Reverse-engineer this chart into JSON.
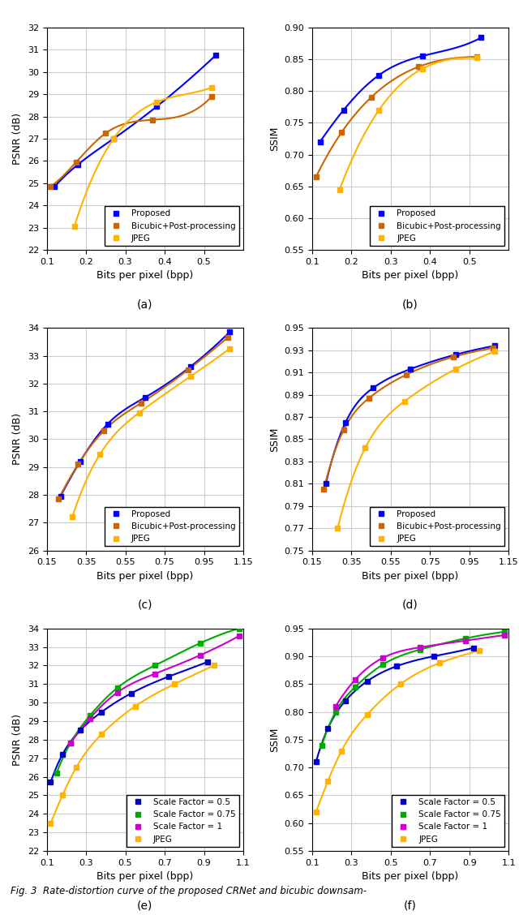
{
  "subplots": [
    {
      "label": "(a)",
      "xlabel": "Bits per pixel (bpp)",
      "ylabel": "PSNR (dB)",
      "xlim": [
        0.1,
        0.6
      ],
      "ylim": [
        22,
        32
      ],
      "xticks": [
        0.1,
        0.2,
        0.3,
        0.4,
        0.5
      ],
      "yticks": [
        22,
        23,
        24,
        25,
        26,
        27,
        28,
        29,
        30,
        31,
        32
      ],
      "series": [
        {
          "name": "Proposed",
          "color": "#0000FF",
          "marker": "s",
          "x": [
            0.12,
            0.18,
            0.27,
            0.38,
            0.53
          ],
          "y": [
            24.85,
            25.85,
            27.0,
            28.45,
            30.75
          ]
        },
        {
          "name": "Bicubic+Post-processing",
          "color": "#CC6600",
          "marker": "s",
          "x": [
            0.11,
            0.175,
            0.25,
            0.37,
            0.52
          ],
          "y": [
            24.85,
            25.95,
            27.25,
            27.85,
            28.9
          ]
        },
        {
          "name": "JPEG",
          "color": "#FFB300",
          "marker": "s",
          "x": [
            0.17,
            0.27,
            0.38,
            0.52
          ],
          "y": [
            23.05,
            27.0,
            28.65,
            29.3
          ]
        }
      ],
      "legend_loc": "lower right"
    },
    {
      "label": "(b)",
      "xlabel": "Bits per pixel (bpp)",
      "ylabel": "SSIM",
      "xlim": [
        0.1,
        0.6
      ],
      "ylim": [
        0.55,
        0.9
      ],
      "xticks": [
        0.1,
        0.2,
        0.3,
        0.4,
        0.5
      ],
      "yticks": [
        0.55,
        0.6,
        0.65,
        0.7,
        0.75,
        0.8,
        0.85,
        0.9
      ],
      "series": [
        {
          "name": "Proposed",
          "color": "#0000FF",
          "marker": "s",
          "x": [
            0.12,
            0.18,
            0.27,
            0.38,
            0.53
          ],
          "y": [
            0.72,
            0.77,
            0.825,
            0.855,
            0.884
          ]
        },
        {
          "name": "Bicubic+Post-processing",
          "color": "#CC6600",
          "marker": "s",
          "x": [
            0.11,
            0.175,
            0.25,
            0.37,
            0.52
          ],
          "y": [
            0.665,
            0.735,
            0.79,
            0.838,
            0.854
          ]
        },
        {
          "name": "JPEG",
          "color": "#FFB300",
          "marker": "s",
          "x": [
            0.17,
            0.27,
            0.38,
            0.52
          ],
          "y": [
            0.645,
            0.77,
            0.835,
            0.852
          ]
        }
      ],
      "legend_loc": "lower right"
    },
    {
      "label": "(c)",
      "xlabel": "Bits per pixel (bpp)",
      "ylabel": "PSNR (dB)",
      "xlim": [
        0.15,
        1.15
      ],
      "ylim": [
        26,
        34
      ],
      "xticks": [
        0.15,
        0.35,
        0.55,
        0.75,
        0.95,
        1.15
      ],
      "yticks": [
        26,
        27,
        28,
        29,
        30,
        31,
        32,
        33,
        34
      ],
      "series": [
        {
          "name": "Proposed",
          "color": "#0000FF",
          "marker": "s",
          "x": [
            0.22,
            0.32,
            0.46,
            0.65,
            0.88,
            1.08
          ],
          "y": [
            27.95,
            29.2,
            30.55,
            31.5,
            32.6,
            33.85
          ]
        },
        {
          "name": "Bicubic+Post-processing",
          "color": "#CC6600",
          "marker": "s",
          "x": [
            0.21,
            0.31,
            0.44,
            0.63,
            0.87,
            1.07
          ],
          "y": [
            27.85,
            29.1,
            30.3,
            31.3,
            32.5,
            33.65
          ]
        },
        {
          "name": "JPEG",
          "color": "#FFB300",
          "marker": "s",
          "x": [
            0.28,
            0.42,
            0.62,
            0.88,
            1.08
          ],
          "y": [
            27.2,
            29.45,
            30.95,
            32.25,
            33.25
          ]
        }
      ],
      "legend_loc": "lower right"
    },
    {
      "label": "(d)",
      "xlabel": "Bits per pixel (bpp)",
      "ylabel": "SSIM",
      "xlim": [
        0.15,
        1.15
      ],
      "ylim": [
        0.75,
        0.95
      ],
      "xticks": [
        0.15,
        0.35,
        0.55,
        0.75,
        0.95,
        1.15
      ],
      "yticks": [
        0.75,
        0.77,
        0.79,
        0.81,
        0.83,
        0.85,
        0.87,
        0.89,
        0.91,
        0.93,
        0.95
      ],
      "series": [
        {
          "name": "Proposed",
          "color": "#0000FF",
          "marker": "s",
          "x": [
            0.22,
            0.32,
            0.46,
            0.65,
            0.88,
            1.08
          ],
          "y": [
            0.81,
            0.865,
            0.896,
            0.913,
            0.926,
            0.934
          ]
        },
        {
          "name": "Bicubic+Post-processing",
          "color": "#CC6600",
          "marker": "s",
          "x": [
            0.21,
            0.31,
            0.44,
            0.63,
            0.87,
            1.07
          ],
          "y": [
            0.805,
            0.858,
            0.887,
            0.908,
            0.924,
            0.932
          ]
        },
        {
          "name": "JPEG",
          "color": "#FFB300",
          "marker": "s",
          "x": [
            0.28,
            0.42,
            0.62,
            0.88,
            1.08
          ],
          "y": [
            0.77,
            0.842,
            0.884,
            0.913,
            0.929
          ]
        }
      ],
      "legend_loc": "lower right"
    },
    {
      "label": "(e)",
      "xlabel": "Bits per pixel (bpp)",
      "ylabel": "PSNR (dB)",
      "xlim": [
        0.1,
        1.1
      ],
      "ylim": [
        22,
        34
      ],
      "xticks": [
        0.1,
        0.3,
        0.5,
        0.7,
        0.9,
        1.1
      ],
      "yticks": [
        22,
        23,
        24,
        25,
        26,
        27,
        28,
        29,
        30,
        31,
        32,
        33,
        34
      ],
      "series": [
        {
          "name": "Scale Factor = 0.5",
          "color": "#0000CC",
          "marker": "s",
          "x": [
            0.12,
            0.18,
            0.27,
            0.38,
            0.53,
            0.72,
            0.92
          ],
          "y": [
            25.7,
            27.2,
            28.5,
            29.5,
            30.5,
            31.4,
            32.2
          ]
        },
        {
          "name": "Scale Factor = 0.75",
          "color": "#00AA00",
          "marker": "s",
          "x": [
            0.15,
            0.22,
            0.32,
            0.46,
            0.65,
            0.88,
            1.08
          ],
          "y": [
            26.2,
            27.8,
            29.3,
            30.8,
            32.0,
            33.2,
            34.0
          ]
        },
        {
          "name": "Scale Factor = 1",
          "color": "#CC00CC",
          "marker": "s",
          "x": [
            0.22,
            0.32,
            0.46,
            0.65,
            0.88,
            1.08
          ],
          "y": [
            27.8,
            29.15,
            30.55,
            31.55,
            32.55,
            33.6
          ]
        },
        {
          "name": "JPEG",
          "color": "#FFB300",
          "marker": "s",
          "x": [
            0.12,
            0.18,
            0.25,
            0.38,
            0.55,
            0.75,
            0.95
          ],
          "y": [
            23.5,
            25.0,
            26.5,
            28.3,
            29.8,
            31.0,
            32.0
          ]
        }
      ],
      "legend_loc": "lower right"
    },
    {
      "label": "(f)",
      "xlabel": "Bits per pixel (bpp)",
      "ylabel": "SSIM",
      "xlim": [
        0.1,
        1.1
      ],
      "ylim": [
        0.55,
        0.95
      ],
      "xticks": [
        0.1,
        0.3,
        0.5,
        0.7,
        0.9,
        1.1
      ],
      "yticks": [
        0.55,
        0.6,
        0.65,
        0.7,
        0.75,
        0.8,
        0.85,
        0.9,
        0.95
      ],
      "series": [
        {
          "name": "Scale Factor = 0.5",
          "color": "#0000CC",
          "marker": "s",
          "x": [
            0.12,
            0.18,
            0.27,
            0.38,
            0.53,
            0.72,
            0.92
          ],
          "y": [
            0.71,
            0.77,
            0.82,
            0.855,
            0.882,
            0.9,
            0.915
          ]
        },
        {
          "name": "Scale Factor = 0.75",
          "color": "#00AA00",
          "marker": "s",
          "x": [
            0.15,
            0.22,
            0.32,
            0.46,
            0.65,
            0.88,
            1.08
          ],
          "y": [
            0.74,
            0.8,
            0.845,
            0.885,
            0.912,
            0.932,
            0.944
          ]
        },
        {
          "name": "Scale Factor = 1",
          "color": "#CC00CC",
          "marker": "s",
          "x": [
            0.22,
            0.32,
            0.46,
            0.65,
            0.88,
            1.08
          ],
          "y": [
            0.81,
            0.858,
            0.897,
            0.916,
            0.928,
            0.938
          ]
        },
        {
          "name": "JPEG",
          "color": "#FFB300",
          "marker": "s",
          "x": [
            0.12,
            0.18,
            0.25,
            0.38,
            0.55,
            0.75,
            0.95
          ],
          "y": [
            0.62,
            0.675,
            0.73,
            0.795,
            0.85,
            0.888,
            0.91
          ]
        }
      ],
      "legend_loc": "lower right"
    }
  ],
  "fig_caption": "Fig. 3  Rate-distortion curve of the proposed CRNet and bicubic downsam-",
  "background_color": "#FFFFFF",
  "grid_color": "#CCCCCC",
  "linewidth": 1.5,
  "markersize": 5
}
